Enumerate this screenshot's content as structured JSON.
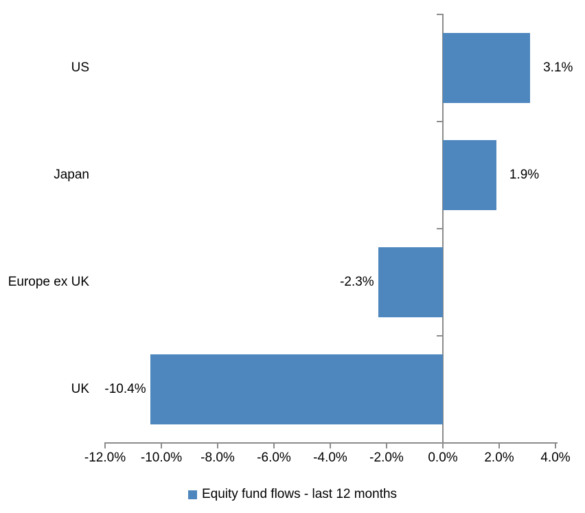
{
  "chart_data": {
    "type": "bar",
    "orientation": "horizontal",
    "title": "",
    "categories": [
      "US",
      "Japan",
      "Europe ex UK",
      "UK"
    ],
    "values": [
      3.1,
      1.9,
      -2.3,
      -10.4
    ],
    "value_labels": [
      "3.1%",
      "1.9%",
      "-2.3%",
      "-10.4%"
    ],
    "x_tick_labels": [
      "-12.0%",
      "-10.0%",
      "-8.0%",
      "-6.0%",
      "-4.0%",
      "-2.0%",
      "0.0%",
      "2.0%",
      "4.0%"
    ],
    "x_tick_values": [
      -12,
      -10,
      -8,
      -6,
      -4,
      -2,
      0,
      2,
      4
    ],
    "xlim": [
      -12,
      4
    ],
    "grid": false,
    "legend": "Equity fund flows - last 12 months",
    "legend_position": "bottom",
    "colors": {
      "bar": "#4E87BE",
      "axis": "#8B8B8B",
      "text": "#000000",
      "background": "#FFFFFF"
    }
  }
}
